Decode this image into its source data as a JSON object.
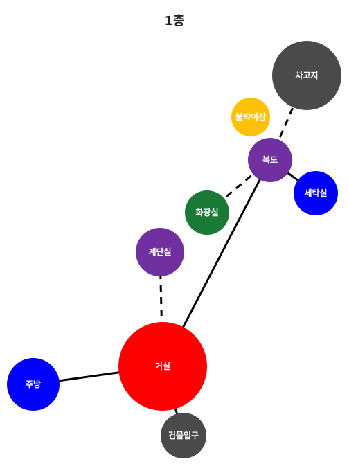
{
  "title": "1층",
  "nodes": [
    {
      "id": "garage",
      "label": "차고지",
      "color": "#4a4a4a"
    },
    {
      "id": "closet",
      "label": "붙박이장",
      "color": "#ffc107"
    },
    {
      "id": "hallway",
      "label": "복도",
      "color": "#7030a0"
    },
    {
      "id": "laundry",
      "label": "세탁실",
      "color": "#0000ff"
    },
    {
      "id": "restroom",
      "label": "화장실",
      "color": "#1a7a35"
    },
    {
      "id": "stairs",
      "label": "계단실",
      "color": "#7030a0"
    },
    {
      "id": "living",
      "label": "거실",
      "color": "#ff0000"
    },
    {
      "id": "kitchen",
      "label": "주방",
      "color": "#0000ff"
    },
    {
      "id": "entrance",
      "label": "건물입구",
      "color": "#4a4a4a"
    }
  ],
  "edges": [
    {
      "from": "living",
      "to": "hallway",
      "style": "solid"
    },
    {
      "from": "living",
      "to": "kitchen",
      "style": "solid"
    },
    {
      "from": "living",
      "to": "entrance",
      "style": "solid"
    },
    {
      "from": "living",
      "to": "stairs",
      "style": "dashed"
    },
    {
      "from": "hallway",
      "to": "restroom",
      "style": "dashed"
    },
    {
      "from": "hallway",
      "to": "garage",
      "style": "dashed"
    },
    {
      "from": "hallway",
      "to": "laundry",
      "style": "solid"
    }
  ]
}
